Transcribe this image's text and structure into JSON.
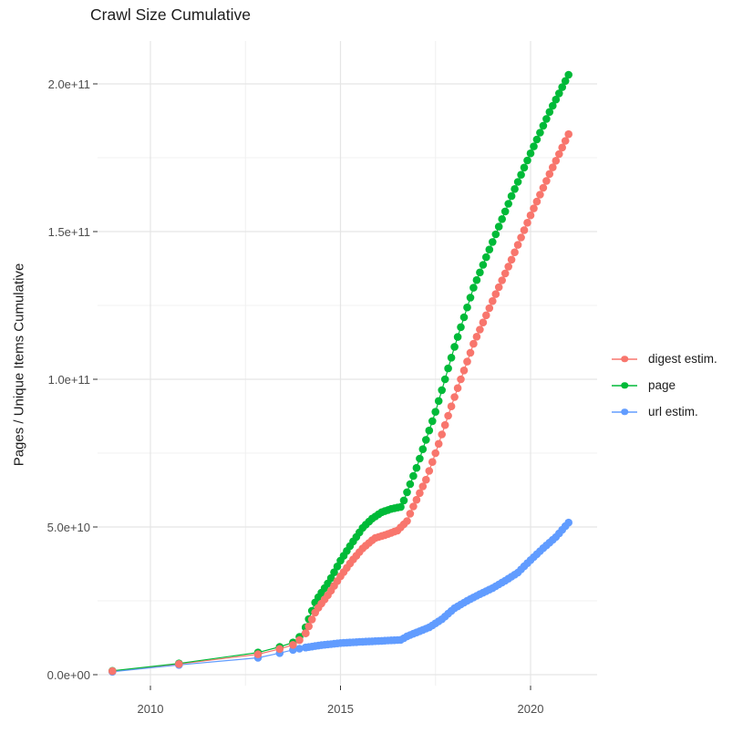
{
  "page": {
    "background": "#FFFFFF"
  },
  "chart_data": {
    "type": "scatter-line",
    "title": "Crawl Size Cumulative",
    "xlabel": "",
    "ylabel": "Pages / Unique Items Cumulative",
    "grid": true,
    "legend_position": "right",
    "x_axis": {
      "ticks": [
        {
          "value": 2010,
          "label": "2010"
        },
        {
          "value": 2015,
          "label": "2015"
        },
        {
          "value": 2020,
          "label": "2020"
        }
      ],
      "minor_ticks": [
        2012.5,
        2017.5
      ],
      "range_years": [
        2008.6,
        2021.8
      ]
    },
    "y_axis": {
      "ticks": [
        {
          "value_e9": 0,
          "label": "0.0e+00"
        },
        {
          "value_e9": 50,
          "label": "5.0e+10"
        },
        {
          "value_e9": 100,
          "label": "1.0e+11"
        },
        {
          "value_e9": 150,
          "label": "1.5e+11"
        },
        {
          "value_e9": 200,
          "label": "2.0e+11"
        }
      ],
      "minor_ticks_e9": [
        25,
        75,
        125,
        175
      ],
      "range_e9": [
        -3.7,
        214.5
      ]
    },
    "point_cadence": {
      "dense_from_year": 2014.0833,
      "step_years": 0.08333
    },
    "series": [
      {
        "name": "digest estim.",
        "color": "#F8766D",
        "points_e9": [
          [
            2009.0,
            1.2
          ],
          [
            2010.75,
            3.6
          ],
          [
            2012.83,
            6.9
          ],
          [
            2013.4,
            8.7
          ],
          [
            2013.75,
            10.1
          ],
          [
            2013.92,
            11.7
          ],
          [
            2014.083,
            14.0
          ],
          [
            2014.35,
            21.5
          ],
          [
            2014.7,
            27.5
          ],
          [
            2015.0,
            33.3
          ],
          [
            2015.3,
            38.5
          ],
          [
            2015.6,
            43.0
          ],
          [
            2015.9,
            46.2
          ],
          [
            2016.2,
            47.4
          ],
          [
            2016.5,
            48.8
          ],
          [
            2016.75,
            52.0
          ],
          [
            2016.9,
            56.5
          ],
          [
            2017.25,
            66.0
          ],
          [
            2017.5,
            75.0
          ],
          [
            2018.0,
            94.0
          ],
          [
            2018.5,
            112.0
          ],
          [
            2019.0,
            126.5
          ],
          [
            2019.5,
            140.5
          ],
          [
            2020.0,
            155.5
          ],
          [
            2020.5,
            169.5
          ],
          [
            2021.083,
            185.2
          ]
        ]
      },
      {
        "name": "page",
        "color": "#00BA38",
        "points_e9": [
          [
            2009.0,
            1.3
          ],
          [
            2010.75,
            3.8
          ],
          [
            2012.83,
            7.5
          ],
          [
            2013.4,
            9.4
          ],
          [
            2013.75,
            10.9
          ],
          [
            2013.92,
            12.8
          ],
          [
            2014.083,
            16.0
          ],
          [
            2014.35,
            25.0
          ],
          [
            2014.7,
            31.5
          ],
          [
            2015.0,
            38.6
          ],
          [
            2015.3,
            44.5
          ],
          [
            2015.6,
            50.0
          ],
          [
            2015.83,
            52.8
          ],
          [
            2016.08,
            55.0
          ],
          [
            2016.35,
            56.2
          ],
          [
            2016.6,
            56.8
          ],
          [
            2017.0,
            70.0
          ],
          [
            2017.5,
            89.0
          ],
          [
            2018.0,
            111.0
          ],
          [
            2018.5,
            131.0
          ],
          [
            2019.0,
            146.5
          ],
          [
            2019.5,
            162.0
          ],
          [
            2020.0,
            176.5
          ],
          [
            2020.5,
            190.5
          ],
          [
            2021.083,
            205.2
          ]
        ]
      },
      {
        "name": "url estim.",
        "color": "#619CFF",
        "points_e9": [
          [
            2009.0,
            1.0
          ],
          [
            2010.75,
            3.3
          ],
          [
            2012.83,
            5.7
          ],
          [
            2013.4,
            7.3
          ],
          [
            2013.75,
            8.4
          ],
          [
            2013.92,
            8.8
          ],
          [
            2014.083,
            9.2
          ],
          [
            2014.5,
            10.0
          ],
          [
            2015.0,
            10.7
          ],
          [
            2015.5,
            11.1
          ],
          [
            2016.0,
            11.4
          ],
          [
            2016.6,
            11.8
          ],
          [
            2016.75,
            13.0
          ],
          [
            2017.0,
            14.3
          ],
          [
            2017.33,
            16.0
          ],
          [
            2017.66,
            18.7
          ],
          [
            2018.0,
            22.5
          ],
          [
            2018.33,
            25.0
          ],
          [
            2018.66,
            27.2
          ],
          [
            2019.0,
            29.3
          ],
          [
            2019.33,
            31.8
          ],
          [
            2019.66,
            34.5
          ],
          [
            2020.0,
            38.8
          ],
          [
            2020.33,
            42.8
          ],
          [
            2020.66,
            46.5
          ],
          [
            2021.0,
            51.5
          ],
          [
            2021.083,
            53.4
          ]
        ]
      }
    ],
    "style": {
      "grid_major_color": "#E5E5E5",
      "grid_minor_color": "#F0F0F0",
      "axis_tick_color": "#333333",
      "tick_text_color": "#4D4D4D",
      "text_color": "#1C1C1C",
      "background": "#FFFFFF"
    }
  }
}
